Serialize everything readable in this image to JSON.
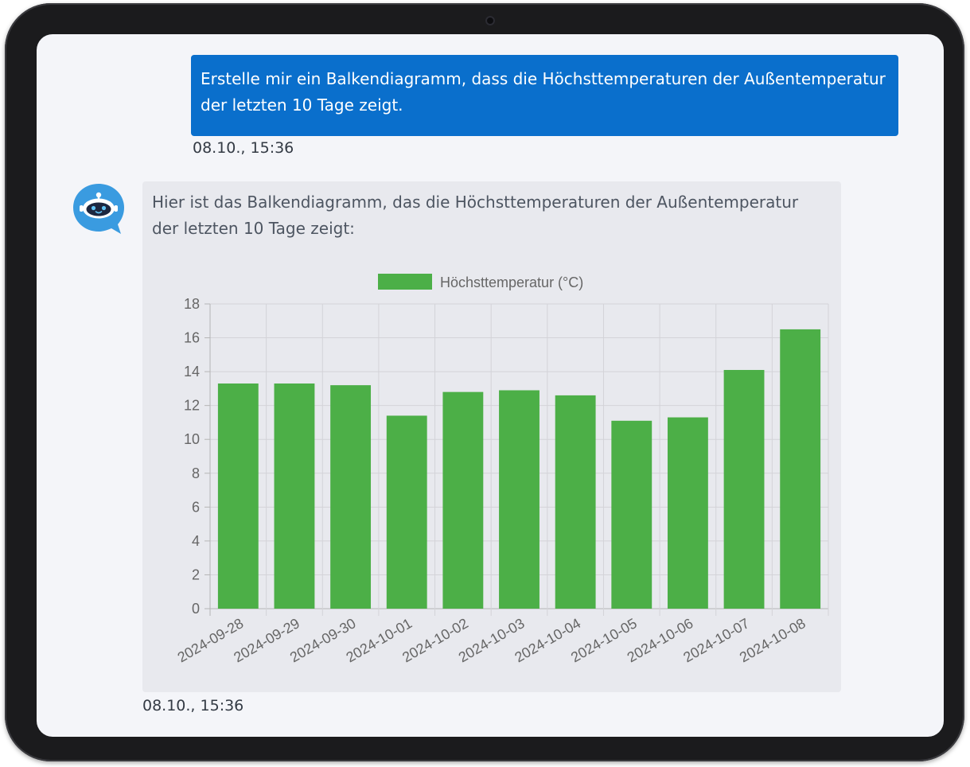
{
  "conversation": {
    "user_message": "Erstelle mir ein Balkendiagramm, dass die Höchsttemperaturen der Außentemperatur der letzten 10 Tage zeigt.",
    "user_timestamp": "08.10., 15:36",
    "bot_message": "Hier ist das Balkendiagramm, das die Höchsttemperaturen der Außentemperatur der letzten 10 Tage zeigt:",
    "bot_timestamp": "08.10., 15:36",
    "bot_avatar_icon": "robot-icon"
  },
  "colors": {
    "user_bubble": "#0a6fcc",
    "bar_fill": "#4caf47",
    "avatar": "#3a9be0"
  },
  "chart_data": {
    "type": "bar",
    "categories": [
      "2024-09-28",
      "2024-09-29",
      "2024-09-30",
      "2024-10-01",
      "2024-10-02",
      "2024-10-03",
      "2024-10-04",
      "2024-10-05",
      "2024-10-06",
      "2024-10-07",
      "2024-10-08"
    ],
    "series": [
      {
        "name": "Höchsttemperatur (°C)",
        "values": [
          13.3,
          13.3,
          13.2,
          11.4,
          12.8,
          12.9,
          12.6,
          11.1,
          11.3,
          14.1,
          16.5
        ]
      }
    ],
    "ylim": [
      0,
      18
    ],
    "yticks": [
      0,
      2,
      4,
      6,
      8,
      10,
      12,
      14,
      16,
      18
    ],
    "grid": true,
    "legend": "top-center"
  }
}
